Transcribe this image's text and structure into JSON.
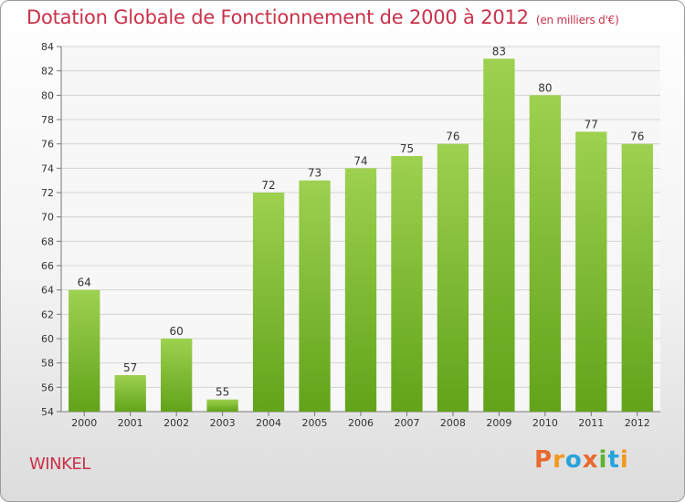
{
  "header": {
    "title": "Dotation Globale de Fonctionnement de 2000 à 2012",
    "subtitle": "(en milliers d'€)"
  },
  "footer": {
    "commune": "WINKEL",
    "brand": "Proxiti"
  },
  "colors": {
    "title": "#c8324a",
    "bar_light": "#9dd14f",
    "bar_dark": "#62a31a",
    "brand_letters": [
      "#e8692e",
      "#f39a1e",
      "#27a3db",
      "#e8692e",
      "#5bb330",
      "#27a3db",
      "#f39a1e"
    ]
  },
  "chart_data": {
    "type": "bar",
    "categories": [
      "2000",
      "2001",
      "2002",
      "2003",
      "2004",
      "2005",
      "2006",
      "2007",
      "2008",
      "2009",
      "2010",
      "2011",
      "2012"
    ],
    "values": [
      64,
      57,
      60,
      55,
      72,
      73,
      74,
      75,
      76,
      83,
      80,
      77,
      76
    ],
    "ylim": [
      54,
      84
    ],
    "yticks": [
      54,
      56,
      58,
      60,
      62,
      64,
      66,
      68,
      70,
      72,
      74,
      76,
      78,
      80,
      82,
      84
    ],
    "grid": true,
    "data_labels": true
  }
}
